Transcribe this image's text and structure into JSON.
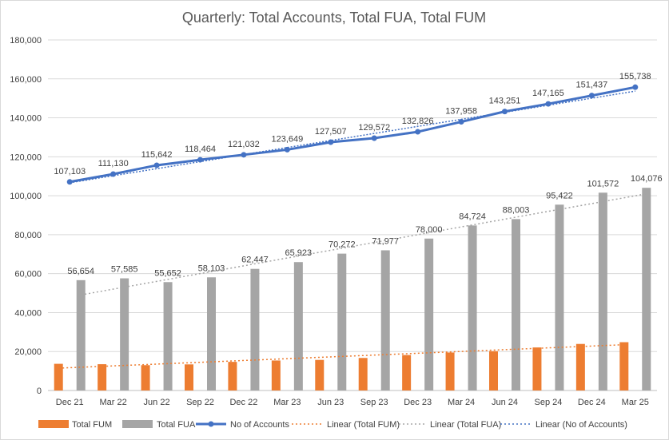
{
  "chart_data": {
    "type": "bar",
    "title": "Quarterly: Total Accounts, Total FUA, Total FUM",
    "xlabel": "",
    "ylabel": "",
    "ylim": [
      0,
      180000
    ],
    "yticks": [
      0,
      20000,
      40000,
      60000,
      80000,
      100000,
      120000,
      140000,
      160000,
      180000
    ],
    "ytick_labels": [
      "0",
      "20,000",
      "40,000",
      "60,000",
      "80,000",
      "100,000",
      "120,000",
      "140,000",
      "160,000",
      "180,000"
    ],
    "grid": true,
    "legend_position": "bottom",
    "categories": [
      "Dec 21",
      "Mar 22",
      "Jun 22",
      "Sep 22",
      "Dec 22",
      "Mar 23",
      "Jun 23",
      "Sep 23",
      "Dec 23",
      "Mar 24",
      "Jun 24",
      "Sep 24",
      "Dec 24",
      "Mar 25"
    ],
    "series": [
      {
        "name": "Total FUM",
        "kind": "bar",
        "color": "#ed7d31",
        "values": [
          13700,
          13500,
          13000,
          13400,
          14700,
          15400,
          15700,
          16700,
          18200,
          19500,
          20200,
          22100,
          23900,
          24800
        ]
      },
      {
        "name": "Total FUA",
        "kind": "bar",
        "color": "#a5a5a5",
        "values": [
          56654,
          57585,
          55652,
          58103,
          62447,
          65923,
          70272,
          71977,
          78000,
          84724,
          88003,
          95422,
          101572,
          104076
        ],
        "labels": [
          "56,654",
          "57,585",
          "55,652",
          "58,103",
          "62,447",
          "65,923",
          "70,272",
          "71,977",
          "78,000",
          "84,724",
          "88,003",
          "95,422",
          "101,572",
          "104,076"
        ]
      },
      {
        "name": "No of Accounts",
        "kind": "line",
        "color": "#4472c4",
        "values": [
          107103,
          111130,
          115642,
          118464,
          121032,
          123649,
          127507,
          129572,
          132826,
          137958,
          143251,
          147165,
          151437,
          155738
        ],
        "labels": [
          "107,103",
          "111,130",
          "115,642",
          "118,464",
          "121,032",
          "123,649",
          "127,507",
          "129,572",
          "132,826",
          "137,958",
          "143,251",
          "147,165",
          "151,437",
          "155,738"
        ]
      }
    ],
    "trendlines": [
      {
        "name": "Linear (Total FUM)",
        "of": "Total FUM",
        "color": "#ed7d31"
      },
      {
        "name": "Linear (Total FUA)",
        "of": "Total FUA",
        "color": "#a5a5a5"
      },
      {
        "name": "Linear (No of Accounts)",
        "of": "No of Accounts",
        "color": "#4472c4"
      }
    ]
  }
}
